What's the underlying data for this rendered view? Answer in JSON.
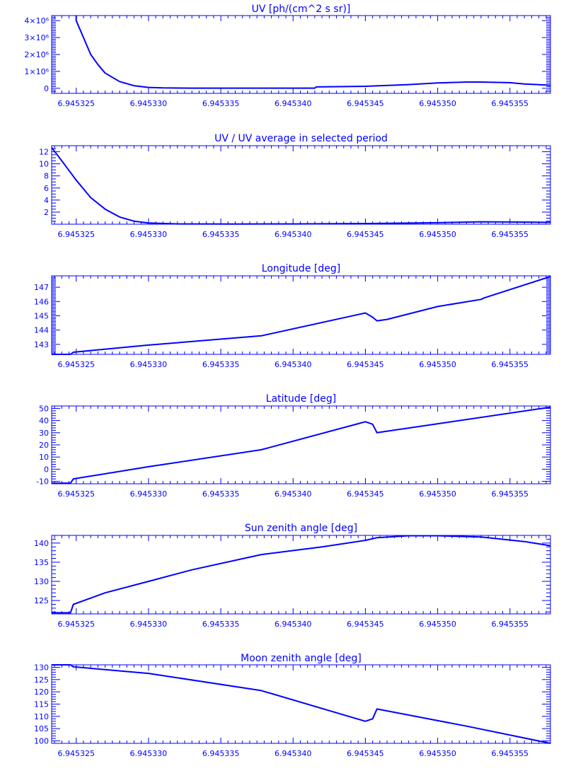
{
  "colors": {
    "axis": "#0000ff",
    "line": "#0000ff",
    "background": "#ffffff"
  },
  "chart_data": [
    {
      "type": "line",
      "title": "UV [ph/(cm^2 s sr)]",
      "xlim": [
        6.9453233,
        6.9453578
      ],
      "ylim": [
        -300000.0,
        4300000.0
      ],
      "x_ticks": [
        6.945325,
        6.94533,
        6.945335,
        6.94534,
        6.945345,
        6.94535,
        6.945355
      ],
      "x_tick_labels": [
        "6.945325",
        "6.945330",
        "6.945335",
        "6.945340",
        "6.945345",
        "6.945350",
        "6.945355"
      ],
      "y_ticks": [
        0,
        1000000,
        2000000,
        3000000,
        4000000
      ],
      "y_tick_labels": [
        "0",
        "1×10⁶",
        "2×10⁶",
        "3×10⁶",
        "4×10⁶"
      ],
      "y_minor_per_major": 10,
      "x": [
        6.945325,
        6.945325,
        6.9453255,
        6.945326,
        6.9453265,
        6.945327,
        6.945328,
        6.945329,
        6.94533,
        6.945331,
        6.945333,
        6.945336,
        6.94534,
        6.9453415,
        6.9453416,
        6.945345,
        6.945348,
        6.94535,
        6.945352,
        6.945353,
        6.945355,
        6.945356,
        6.9453578
      ],
      "y": [
        4300000,
        4000000,
        3000000,
        2000000,
        1400000,
        900000,
        400000,
        150000,
        50000,
        20000,
        10000,
        10000,
        10000,
        10000,
        80000,
        120000,
        220000,
        320000,
        370000,
        370000,
        330000,
        250000,
        180000
      ]
    },
    {
      "type": "line",
      "title": "UV / UV average in selected period",
      "xlim": [
        6.9453233,
        6.9453578
      ],
      "ylim": [
        0,
        13
      ],
      "x_ticks": [
        6.945325,
        6.94533,
        6.945335,
        6.94534,
        6.945345,
        6.94535,
        6.945355
      ],
      "x_tick_labels": [
        "6.945325",
        "6.945330",
        "6.945335",
        "6.945340",
        "6.945345",
        "6.945350",
        "6.945355"
      ],
      "y_ticks": [
        2,
        4,
        6,
        8,
        10,
        12
      ],
      "y_tick_labels": [
        "2",
        "4",
        "6",
        "8",
        "10",
        "12"
      ],
      "y_minor_per_major": 4,
      "x": [
        6.9453233,
        6.945324,
        6.945325,
        6.945326,
        6.945327,
        6.945328,
        6.945329,
        6.94533,
        6.945332,
        6.945336,
        6.94534,
        6.945345,
        6.94535,
        6.945353,
        6.945356,
        6.9453578
      ],
      "y": [
        12.7,
        10.5,
        7.3,
        4.4,
        2.5,
        1.2,
        0.5,
        0.2,
        0.05,
        0.03,
        0.05,
        0.1,
        0.25,
        0.4,
        0.35,
        0.3
      ]
    },
    {
      "type": "line",
      "title": "Longitude [deg]",
      "xlim": [
        6.9453233,
        6.9453578
      ],
      "ylim": [
        142.3,
        147.8
      ],
      "x_ticks": [
        6.945325,
        6.94533,
        6.945335,
        6.94534,
        6.945345,
        6.94535,
        6.945355
      ],
      "x_tick_labels": [
        "6.945325",
        "6.945330",
        "6.945335",
        "6.945340",
        "6.945345",
        "6.945350",
        "6.945355"
      ],
      "y_ticks": [
        143,
        144,
        145,
        146,
        147
      ],
      "y_tick_labels": [
        "143",
        "144",
        "145",
        "146",
        "147"
      ],
      "y_minor_per_major": 10,
      "x": [
        6.9453233,
        6.9453246,
        6.9453248,
        6.94533,
        6.9453378,
        6.945345,
        6.9453455,
        6.9453458,
        6.9453465,
        6.94535,
        6.945353,
        6.9453532,
        6.9453578
      ],
      "y": [
        142.3,
        142.3,
        142.45,
        142.95,
        143.6,
        145.2,
        144.9,
        144.65,
        144.75,
        145.65,
        146.15,
        146.25,
        147.75
      ]
    },
    {
      "type": "line",
      "title": "Latitude [deg]",
      "xlim": [
        6.9453233,
        6.9453578
      ],
      "ylim": [
        -12,
        52
      ],
      "x_ticks": [
        6.945325,
        6.94533,
        6.945335,
        6.94534,
        6.945345,
        6.94535,
        6.945355
      ],
      "x_tick_labels": [
        "6.945325",
        "6.945330",
        "6.945335",
        "6.945340",
        "6.945345",
        "6.945350",
        "6.945355"
      ],
      "y_ticks": [
        -10,
        0,
        10,
        20,
        30,
        40,
        50
      ],
      "y_tick_labels": [
        "-10",
        "0",
        "10",
        "20",
        "30",
        "40",
        "50"
      ],
      "y_minor_per_major": 5,
      "x": [
        6.9453233,
        6.9453246,
        6.9453248,
        6.94533,
        6.9453378,
        6.945345,
        6.9453455,
        6.9453458,
        6.9453578
      ],
      "y": [
        -11.5,
        -11.5,
        -8,
        2,
        16,
        39,
        37,
        30,
        51
      ]
    },
    {
      "type": "line",
      "title": "Sun zenith angle [deg]",
      "xlim": [
        6.9453233,
        6.9453578
      ],
      "ylim": [
        121.5,
        142
      ],
      "x_ticks": [
        6.945325,
        6.94533,
        6.945335,
        6.94534,
        6.945345,
        6.94535,
        6.945355
      ],
      "x_tick_labels": [
        "6.945325",
        "6.945330",
        "6.945335",
        "6.945340",
        "6.945345",
        "6.945350",
        "6.945355"
      ],
      "y_ticks": [
        125,
        130,
        135,
        140
      ],
      "y_tick_labels": [
        "125",
        "130",
        "135",
        "140"
      ],
      "y_minor_per_major": 5,
      "x": [
        6.9453233,
        6.9453246,
        6.9453248,
        6.945327,
        6.94533,
        6.945333,
        6.9453378,
        6.945342,
        6.945345,
        6.9453458,
        6.945348,
        6.94535,
        6.945353,
        6.945356,
        6.9453578
      ],
      "y": [
        121.8,
        121.8,
        124,
        127,
        130,
        133,
        137,
        139,
        140.7,
        141.4,
        141.9,
        141.9,
        141.6,
        140.4,
        139.3
      ]
    },
    {
      "type": "line",
      "title": "Moon zenith angle [deg]",
      "xlim": [
        6.9453233,
        6.9453578
      ],
      "ylim": [
        99,
        131
      ],
      "x_ticks": [
        6.945325,
        6.94533,
        6.945335,
        6.94534,
        6.945345,
        6.94535,
        6.945355
      ],
      "x_tick_labels": [
        "6.945325",
        "6.945330",
        "6.945335",
        "6.945340",
        "6.945345",
        "6.945350",
        "6.945355"
      ],
      "y_ticks": [
        100,
        105,
        110,
        115,
        120,
        125,
        130
      ],
      "y_tick_labels": [
        "100",
        "105",
        "110",
        "115",
        "120",
        "125",
        "130"
      ],
      "y_minor_per_major": 5,
      "x": [
        6.9453233,
        6.9453246,
        6.9453248,
        6.94533,
        6.9453378,
        6.945345,
        6.9453455,
        6.9453458,
        6.945352,
        6.9453578
      ],
      "y": [
        131,
        131,
        130.2,
        127.5,
        120.5,
        108,
        109,
        113,
        106,
        99
      ]
    }
  ]
}
